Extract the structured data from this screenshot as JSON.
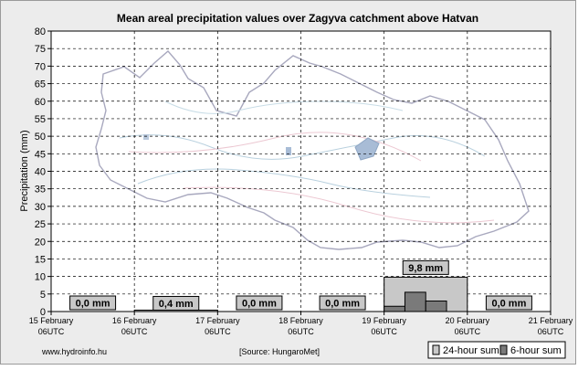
{
  "chart_data": {
    "type": "bar",
    "title": "Mean areal precipitation values over Zagyva catchment above Hatvan",
    "ylabel": "Precipitation (mm)",
    "xlabel": "",
    "ylim": [
      0,
      80
    ],
    "yticks": [
      0,
      5,
      10,
      15,
      20,
      25,
      30,
      35,
      40,
      45,
      50,
      55,
      60,
      65,
      70,
      75,
      80
    ],
    "grid": true,
    "x_ticks": [
      {
        "date": "15 February",
        "time": "06UTC"
      },
      {
        "date": "16 February",
        "time": "06UTC"
      },
      {
        "date": "17 February",
        "time": "06UTC"
      },
      {
        "date": "18 February",
        "time": "06UTC"
      },
      {
        "date": "19 February",
        "time": "06UTC"
      },
      {
        "date": "20 February",
        "time": "06UTC"
      },
      {
        "date": "21 February",
        "time": "06UTC"
      }
    ],
    "series": [
      {
        "name": "24-hour sum",
        "color": "#c8c8c8",
        "day_values": [
          0.0,
          0.4,
          0.0,
          0.0,
          9.8,
          0.0
        ],
        "day_labels": [
          "0,0 mm",
          "0,4 mm",
          "0,0 mm",
          "0,0 mm",
          "9,8 mm",
          "0,0 mm"
        ]
      },
      {
        "name": "6-hour sum",
        "color": "#7a7a7a",
        "period_values": [
          [
            0.0,
            0.0,
            0.0,
            0.0
          ],
          [
            0.0,
            0.0,
            0.0,
            0.0
          ],
          [
            0.0,
            0.0,
            0.0,
            0.0
          ],
          [
            0.0,
            0.0,
            0.0,
            0.0
          ],
          [
            1.5,
            5.5,
            3.0,
            0.0
          ],
          [
            0.0,
            0.0,
            0.0,
            0.0
          ]
        ]
      }
    ],
    "legend_position": "bottom-right",
    "background": "map of the Zagyva catchment"
  },
  "footer": {
    "website": "www.hydroinfo.hu",
    "source": "[Source: HungaroMet]"
  },
  "legend": {
    "items": [
      "24-hour sum",
      "6-hour sum"
    ]
  }
}
